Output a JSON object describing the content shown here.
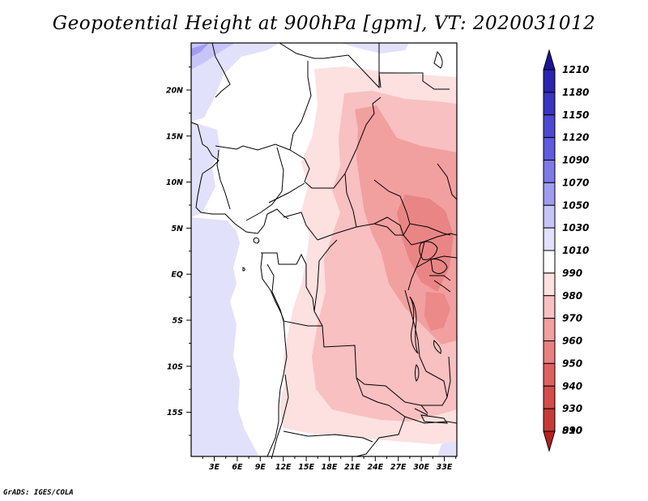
{
  "title": "Geopotential Height at 900hPa [gpm], VT: 2020031012",
  "credit": "GrADS: IGES/COLA",
  "map": {
    "lat_labels": [
      "20N",
      "15N",
      "10N",
      "5N",
      "EQ",
      "5S",
      "10S",
      "15S"
    ],
    "lon_labels": [
      "3E",
      "6E",
      "9E",
      "12E",
      "15E",
      "18E",
      "21E",
      "24E",
      "27E",
      "30E",
      "33E"
    ]
  },
  "colorbar": {
    "levels": [
      "1210",
      "1180",
      "1150",
      "1120",
      "1090",
      "1070",
      "1050",
      "1030",
      "1010",
      "990",
      "980",
      "970",
      "960",
      "950",
      "940",
      "930",
      "910",
      "890"
    ],
    "colors": [
      "#1c1499",
      "#2a24b0",
      "#3a34c4",
      "#4c48d4",
      "#5e5be0",
      "#7d7ae6",
      "#a09cf0",
      "#c7c5f7",
      "#e1e1fc",
      "#ffffff",
      "#fde0e0",
      "#f8c0c0",
      "#f29f9f",
      "#e98080",
      "#e06060",
      "#d64a4a",
      "#c93838",
      "#b52222"
    ]
  }
}
